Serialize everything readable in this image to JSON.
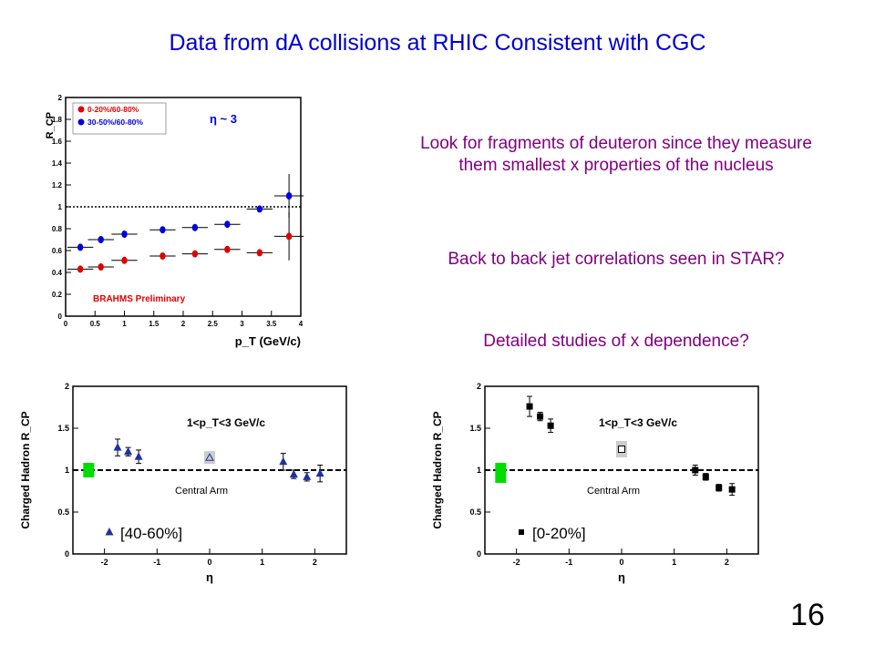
{
  "slide": {
    "title": "Data from dA collisions at RHIC Consistent with CGC",
    "notes": [
      "Look for fragments of deuteron since they measure them smallest x properties of the nucleus",
      "Back to back jet correlations seen in STAR?",
      "Detailed studies of x dependence?"
    ],
    "page_number": "16"
  },
  "colors": {
    "title": "#0000CC",
    "notes": "#800080",
    "red": "#e00000",
    "blue": "#0000dd",
    "phenix_blue": "#2030a0",
    "green": "#00dd00"
  },
  "chart_data": [
    {
      "type": "scatter",
      "title": "",
      "annotation": "η ~ 3",
      "ylabel": "R_CP",
      "xlabel": "p_T (GeV/c)",
      "watermark": "BRAHMS Preliminary",
      "xlim": [
        0,
        4
      ],
      "ylim": [
        0,
        2
      ],
      "xticks": [
        "0",
        "0.5",
        "1",
        "1.5",
        "2",
        "2.5",
        "3",
        "3.5",
        "4"
      ],
      "yticks": [
        "0",
        "0.2",
        "0.4",
        "0.6",
        "0.8",
        "1",
        "1.2",
        "1.4",
        "1.6",
        "1.8",
        "2"
      ],
      "reference_line": 1.0,
      "legend_position": "top-left",
      "series": [
        {
          "name": "0-20%/60-80%",
          "color": "red",
          "points": [
            {
              "x": 0.25,
              "y": 0.43
            },
            {
              "x": 0.6,
              "y": 0.45
            },
            {
              "x": 1.0,
              "y": 0.51
            },
            {
              "x": 1.65,
              "y": 0.55
            },
            {
              "x": 2.2,
              "y": 0.57
            },
            {
              "x": 2.75,
              "y": 0.61
            },
            {
              "x": 3.3,
              "y": 0.58
            },
            {
              "x": 3.8,
              "y": 0.73,
              "err": 0.22,
              "xerr": 0.25
            }
          ]
        },
        {
          "name": "30-50%/60-80%",
          "color": "blue",
          "points": [
            {
              "x": 0.25,
              "y": 0.63
            },
            {
              "x": 0.6,
              "y": 0.7
            },
            {
              "x": 1.0,
              "y": 0.75
            },
            {
              "x": 1.65,
              "y": 0.79
            },
            {
              "x": 2.2,
              "y": 0.81
            },
            {
              "x": 2.75,
              "y": 0.84
            },
            {
              "x": 3.3,
              "y": 0.98
            },
            {
              "x": 3.8,
              "y": 1.1,
              "err": 0.2,
              "xerr": 0.25
            }
          ]
        }
      ]
    },
    {
      "type": "scatter",
      "ylabel": "Charged Hadron R_CP",
      "xlabel": "η",
      "annotation": "1<p_T<3 GeV/c",
      "reference_label": "Central Arm",
      "xlim": [
        -2.6,
        2.6
      ],
      "ylim": [
        0,
        2
      ],
      "xticks": [
        "-2",
        "-1",
        "0",
        "1",
        "2"
      ],
      "yticks": [
        "0",
        "0.5",
        "1",
        "1.5",
        "2"
      ],
      "reference_line": 1.0,
      "legend_position": "bottom-left",
      "series": [
        {
          "name": "[40-60%]",
          "color": "phenix_blue",
          "marker": "triangle",
          "points": [
            {
              "x": -1.75,
              "y": 1.27,
              "err": 0.1
            },
            {
              "x": -1.55,
              "y": 1.22,
              "err": 0.05
            },
            {
              "x": -1.35,
              "y": 1.16,
              "err": 0.08
            },
            {
              "x": 1.4,
              "y": 1.1,
              "err": 0.1
            },
            {
              "x": 1.6,
              "y": 0.95,
              "err": 0.05
            },
            {
              "x": 1.85,
              "y": 0.92,
              "err": 0.05
            },
            {
              "x": 2.1,
              "y": 0.96,
              "err": 0.1
            }
          ]
        },
        {
          "name": "",
          "color": "phenix_blue",
          "marker": "open-triangle",
          "points": [
            {
              "x": 0.0,
              "y": 1.15
            }
          ]
        }
      ]
    },
    {
      "type": "scatter",
      "ylabel": "Charged Hadron R_CP",
      "xlabel": "η",
      "annotation": "1<p_T<3 GeV/c",
      "reference_label": "Central Arm",
      "xlim": [
        -2.6,
        2.6
      ],
      "ylim": [
        0,
        2
      ],
      "xticks": [
        "-2",
        "-1",
        "0",
        "1",
        "2"
      ],
      "yticks": [
        "0",
        "0.5",
        "1",
        "1.5",
        "2"
      ],
      "reference_line": 1.0,
      "legend_position": "bottom-left",
      "series": [
        {
          "name": "[0-20%]",
          "color": "#000000",
          "marker": "square",
          "points": [
            {
              "x": -1.75,
              "y": 1.76,
              "err": 0.12
            },
            {
              "x": -1.55,
              "y": 1.64,
              "err": 0.05
            },
            {
              "x": -1.35,
              "y": 1.53,
              "err": 0.08
            },
            {
              "x": 1.4,
              "y": 1.0,
              "err": 0.06
            },
            {
              "x": 1.6,
              "y": 0.92,
              "err": 0.04
            },
            {
              "x": 1.85,
              "y": 0.79,
              "err": 0.04
            },
            {
              "x": 2.1,
              "y": 0.77,
              "err": 0.07
            }
          ]
        },
        {
          "name": "",
          "color": "#000000",
          "marker": "open-square",
          "points": [
            {
              "x": 0.0,
              "y": 1.25
            }
          ]
        }
      ]
    }
  ]
}
